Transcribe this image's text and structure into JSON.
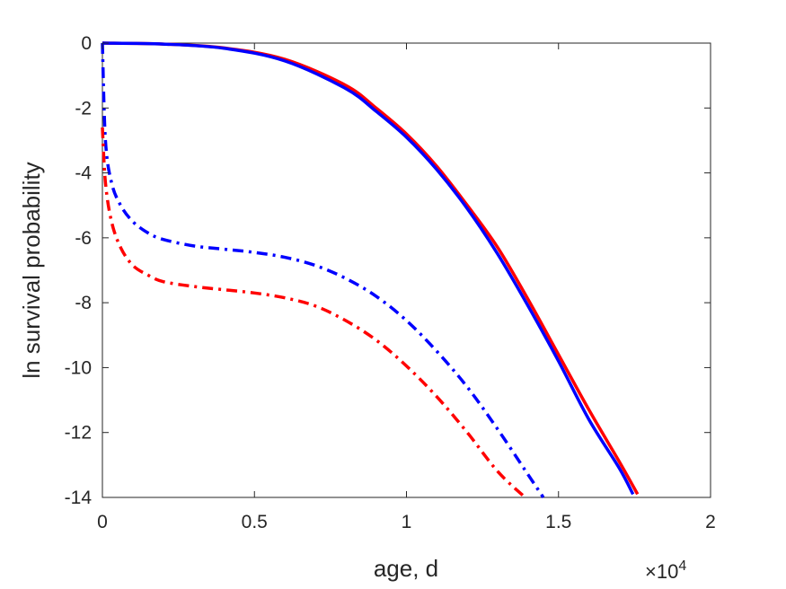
{
  "chart_data": {
    "type": "line",
    "xlabel": "age, d",
    "ylabel": "ln survival probability",
    "x_exponent_label": "×10",
    "x_exponent_power": "4",
    "xlim": [
      0,
      20000
    ],
    "ylim": [
      -14,
      0
    ],
    "xticks": [
      0,
      5000,
      10000,
      15000,
      20000
    ],
    "xtick_labels": [
      "0",
      "0.5",
      "1",
      "1.5",
      "2"
    ],
    "yticks": [
      0,
      -2,
      -4,
      -6,
      -8,
      -10,
      -12,
      -14
    ],
    "ytick_labels": [
      "0",
      "-2",
      "-4",
      "-6",
      "-8",
      "-10",
      "-12",
      "-14"
    ],
    "grid": false,
    "series": [
      {
        "color": "#ff0000",
        "style": "solid",
        "x": [
          0,
          2000,
          4000,
          6000,
          8000,
          9000,
          10000,
          11000,
          12000,
          13000,
          14000,
          15000,
          16000,
          17000,
          17600
        ],
        "y": [
          0,
          -0.03,
          -0.15,
          -0.5,
          -1.3,
          -2.0,
          -2.8,
          -3.8,
          -5.0,
          -6.3,
          -7.9,
          -9.6,
          -11.3,
          -12.9,
          -13.9
        ]
      },
      {
        "color": "#0000ff",
        "style": "solid",
        "x": [
          0,
          2000,
          4000,
          6000,
          8000,
          9000,
          10000,
          11000,
          12000,
          13000,
          14000,
          15000,
          16000,
          17000,
          17450
        ],
        "y": [
          0,
          -0.03,
          -0.16,
          -0.55,
          -1.4,
          -2.1,
          -2.9,
          -3.9,
          -5.1,
          -6.5,
          -8.1,
          -9.8,
          -11.6,
          -13.1,
          -13.9
        ]
      },
      {
        "color": "#0000ff",
        "style": "dashdot",
        "x": [
          0,
          100,
          300,
          600,
          1000,
          1500,
          2000,
          3000,
          4000,
          5000,
          6000,
          7000,
          8000,
          9000,
          10000,
          11000,
          12000,
          13000,
          14000,
          14500
        ],
        "y": [
          0,
          -3.0,
          -4.3,
          -5.0,
          -5.5,
          -5.85,
          -6.05,
          -6.25,
          -6.35,
          -6.45,
          -6.6,
          -6.85,
          -7.25,
          -7.8,
          -8.55,
          -9.5,
          -10.6,
          -11.9,
          -13.3,
          -14.0
        ]
      },
      {
        "color": "#ff0000",
        "style": "dashdot",
        "x": [
          0,
          100,
          300,
          600,
          1000,
          1500,
          2000,
          3000,
          4000,
          5000,
          6000,
          7000,
          8000,
          9000,
          10000,
          11000,
          12000,
          13000,
          13900
        ],
        "y": [
          -2.6,
          -4.3,
          -5.5,
          -6.3,
          -6.85,
          -7.15,
          -7.35,
          -7.5,
          -7.6,
          -7.7,
          -7.85,
          -8.1,
          -8.55,
          -9.15,
          -9.95,
          -10.9,
          -12.0,
          -13.2,
          -14.0
        ]
      }
    ]
  }
}
